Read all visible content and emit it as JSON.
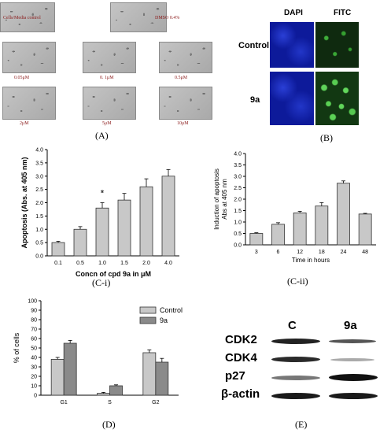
{
  "panel_a": {
    "label": "(A)",
    "micrographs": [
      {
        "label": "Cells/Media control"
      },
      {
        "label": "DMSO 0.4%"
      },
      {
        "label": "0.05μM"
      },
      {
        "label": "0. 1μM"
      },
      {
        "label": "0.5μM"
      },
      {
        "label": "2μM"
      },
      {
        "label": "5μM"
      },
      {
        "label": "10μM"
      }
    ]
  },
  "panel_b": {
    "label": "(B)",
    "col_headers": [
      "DAPI",
      "FITC"
    ],
    "row_labels": [
      "Control",
      "9a"
    ],
    "colors": {
      "dapi": "#0d1a9a",
      "fitc": "#3aa835"
    }
  },
  "panel_ci_label": "(C-i)",
  "panel_cii_label": "(C-ii)",
  "panel_d_label": "(D)",
  "panel_e": {
    "label": "(E)",
    "col_headers": [
      "C",
      "9a"
    ],
    "row_labels": [
      "CDK2",
      "CDK4",
      "p27",
      "β-actin"
    ]
  },
  "chart_data": [
    {
      "id": "C-i",
      "type": "bar",
      "categories": [
        "0.1",
        "0.5",
        "1.0",
        "1.5",
        "2.0",
        "4.0"
      ],
      "values": [
        0.5,
        1.0,
        1.8,
        2.1,
        2.6,
        3.0
      ],
      "errors": [
        0.05,
        0.1,
        0.2,
        0.25,
        0.3,
        0.25
      ],
      "annotation": "*",
      "xlabel": "Concn of cpd 9a in μM",
      "ylabel": "Apoptosis (Abs. at 405 nm)",
      "ylim": [
        0,
        4
      ],
      "yticks": [
        "0.0",
        "0.5",
        "1.0",
        "1.5",
        "2.0",
        "2.5",
        "3.0",
        "3.5",
        "4.0"
      ]
    },
    {
      "id": "C-ii",
      "type": "bar",
      "categories": [
        "3",
        "6",
        "12",
        "18",
        "24",
        "48"
      ],
      "values": [
        0.5,
        0.9,
        1.4,
        1.7,
        2.7,
        1.35
      ],
      "errors": [
        0.03,
        0.07,
        0.07,
        0.15,
        0.1,
        0.03
      ],
      "xlabel": "Time in hours",
      "ylabel": "Induction of apoptosis Abs at 405 nm",
      "ylim": [
        0,
        4
      ],
      "yticks": [
        "0.0",
        "0.5",
        "1.0",
        "1.5",
        "2.0",
        "2.5",
        "3.0",
        "3.5",
        "4.0"
      ]
    },
    {
      "id": "D",
      "type": "bar",
      "categories": [
        "G1",
        "S",
        "G2"
      ],
      "series": [
        {
          "name": "Control",
          "values": [
            38,
            2,
            45
          ],
          "errors": [
            2,
            1,
            3
          ],
          "color": "#c8c8c8"
        },
        {
          "name": "9a",
          "values": [
            55,
            10,
            35
          ],
          "errors": [
            3,
            1,
            4
          ],
          "color": "#8a8a8a"
        }
      ],
      "ylabel": "% of cells",
      "ylim": [
        0,
        100
      ],
      "yticks": [
        "0",
        "10",
        "20",
        "30",
        "40",
        "50",
        "60",
        "70",
        "80",
        "90",
        "100"
      ],
      "legend": "top-right"
    }
  ]
}
